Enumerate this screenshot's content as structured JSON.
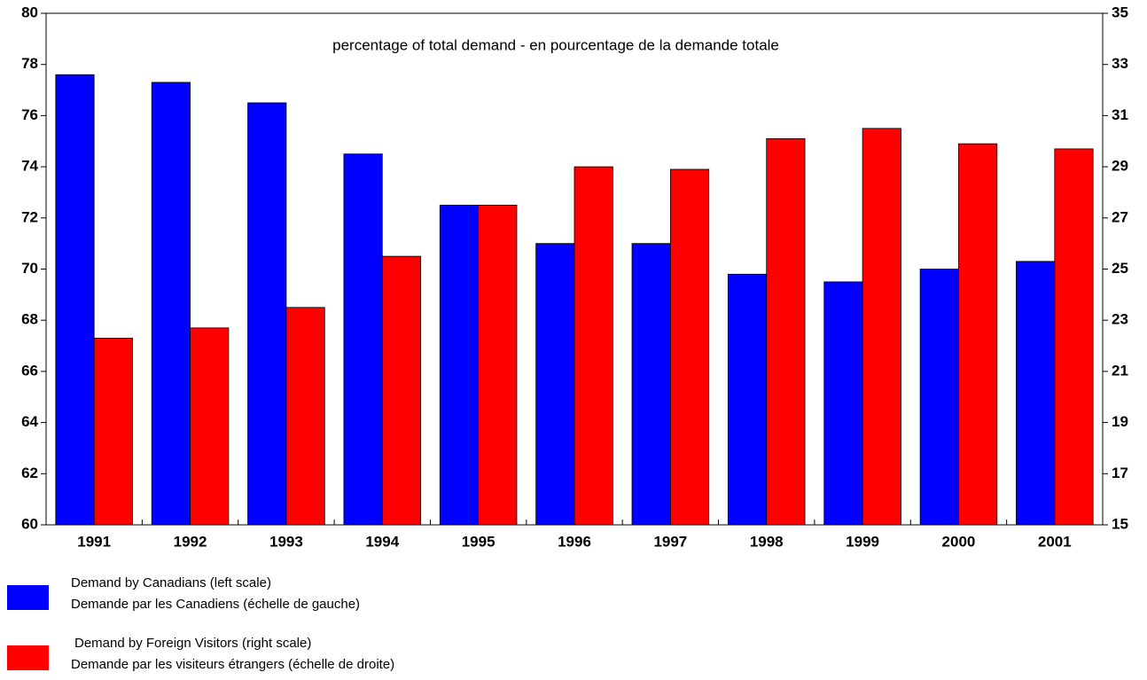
{
  "chart_data": {
    "type": "bar",
    "annotation": "percentage of total demand - en pourcentage de la demande totale",
    "categories": [
      "1991",
      "1992",
      "1993",
      "1994",
      "1995",
      "1996",
      "1997",
      "1998",
      "1999",
      "2000",
      "2001"
    ],
    "series": [
      {
        "name": "Demand by Canadians (left scale)",
        "name_fr": "Demande par les Canadiens (échelle de gauche)",
        "color": "#0000ff",
        "values": [
          77.6,
          77.3,
          76.5,
          74.5,
          72.5,
          71.0,
          71.0,
          69.8,
          69.5,
          70.0,
          70.3
        ]
      },
      {
        "name": "Demand by Foreign Visitors (right scale)",
        "name_fr": "Demande par les visiteurs étrangers (échelle de droite)",
        "color": "#ff0000",
        "axis": "y2",
        "values": [
          22.3,
          22.7,
          23.5,
          25.5,
          27.5,
          29.0,
          28.9,
          30.1,
          30.5,
          29.9,
          29.7
        ]
      }
    ],
    "ylim": [
      60,
      80
    ],
    "yticks": [
      60,
      62,
      64,
      66,
      68,
      70,
      72,
      74,
      76,
      78,
      80
    ],
    "y2lim": [
      15,
      35
    ],
    "y2ticks": [
      15,
      17,
      19,
      21,
      23,
      25,
      27,
      29,
      31,
      33,
      35
    ],
    "grid": false
  }
}
